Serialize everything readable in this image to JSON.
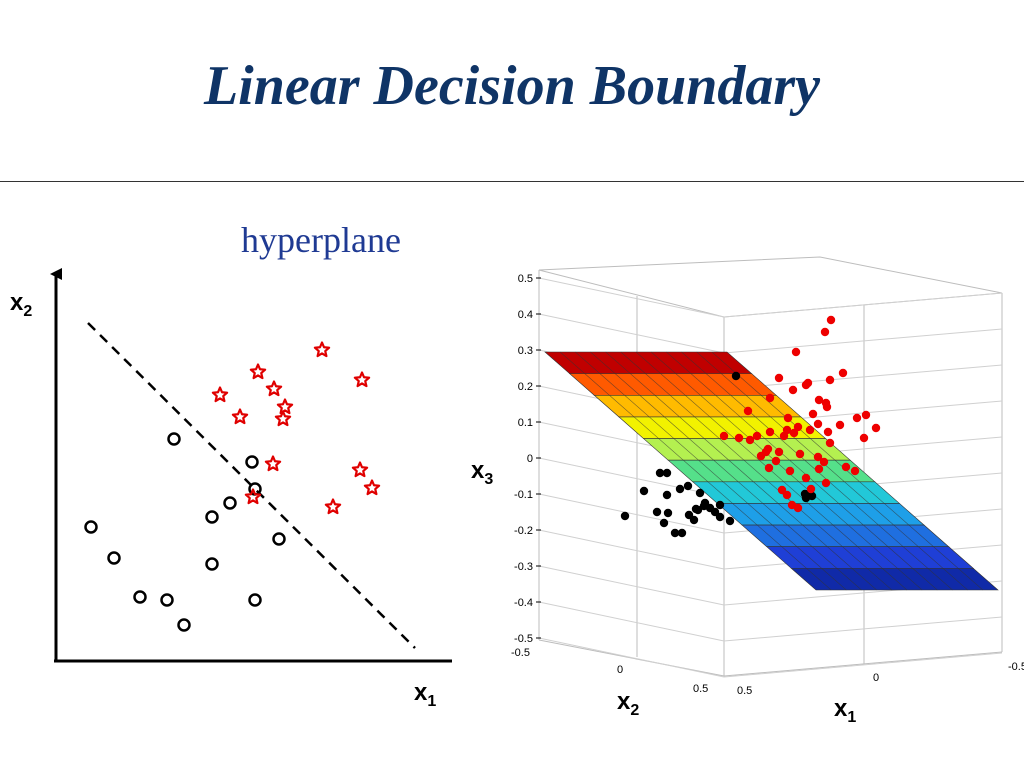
{
  "slide": {
    "title": "Linear Decision Boundary",
    "hyperplane_label": "hyperplane"
  },
  "plot2d": {
    "x_axis_label": "x",
    "x_axis_sub": "1",
    "y_axis_label": "x",
    "y_axis_sub": "2",
    "circles": [
      [
        174,
        439
      ],
      [
        252,
        462
      ],
      [
        255,
        489
      ],
      [
        230,
        503
      ],
      [
        212,
        517
      ],
      [
        279,
        539
      ],
      [
        91,
        527
      ],
      [
        114,
        558
      ],
      [
        212,
        564
      ],
      [
        140,
        597
      ],
      [
        167,
        600
      ],
      [
        184,
        625
      ],
      [
        255,
        600
      ]
    ],
    "stars": [
      [
        322,
        350
      ],
      [
        258,
        372
      ],
      [
        362,
        380
      ],
      [
        220,
        395
      ],
      [
        274,
        389
      ],
      [
        285,
        407
      ],
      [
        240,
        417
      ],
      [
        283,
        419
      ],
      [
        273,
        464
      ],
      [
        360,
        470
      ],
      [
        253,
        497
      ],
      [
        372,
        488
      ],
      [
        333,
        507
      ]
    ],
    "boundary": [
      [
        88,
        323
      ],
      [
        415,
        648
      ]
    ],
    "colors": {
      "circle": "#000000",
      "star": "#e00000"
    }
  },
  "plot3d": {
    "z_axis_label": "x",
    "z_axis_sub": "3",
    "x1_axis_label": "x",
    "x1_axis_sub": "1",
    "x2_axis_label": "x",
    "x2_axis_sub": "2",
    "z_ticks": [
      "0.5",
      "0.4",
      "0.3",
      "0.2",
      "0.1",
      "0",
      "-0.1",
      "-0.2",
      "-0.3",
      "-0.4",
      "-0.5"
    ],
    "x2_ticks": [
      "-0.5",
      "0",
      "0.5"
    ],
    "x1_ticks": [
      "0.5",
      "0",
      "-0.5"
    ],
    "plane_colors": [
      "#c00000",
      "#ff5a00",
      "#ffbb00",
      "#f2f200",
      "#b4f050",
      "#55e08a",
      "#22c8d8",
      "#1e9fe8",
      "#1f6fe0",
      "#1f3fd6",
      "#102aa8"
    ],
    "black_points": [
      [
        625,
        516
      ],
      [
        660,
        473
      ],
      [
        667,
        473
      ],
      [
        644,
        491
      ],
      [
        667,
        495
      ],
      [
        680,
        489
      ],
      [
        688,
        486
      ],
      [
        700,
        493
      ],
      [
        657,
        512
      ],
      [
        664,
        523
      ],
      [
        668,
        513
      ],
      [
        675,
        533
      ],
      [
        682,
        533
      ],
      [
        689,
        515
      ],
      [
        694,
        520
      ],
      [
        698,
        510
      ],
      [
        705,
        503
      ],
      [
        710,
        508
      ],
      [
        715,
        512
      ],
      [
        720,
        505
      ],
      [
        730,
        521
      ],
      [
        720,
        517
      ],
      [
        704,
        506
      ],
      [
        696,
        509
      ],
      [
        736,
        376
      ],
      [
        805,
        494
      ],
      [
        812,
        496
      ],
      [
        806,
        498
      ]
    ],
    "red_points": [
      [
        831,
        320
      ],
      [
        825,
        332
      ],
      [
        796,
        352
      ],
      [
        843,
        373
      ],
      [
        779,
        378
      ],
      [
        808,
        383
      ],
      [
        830,
        380
      ],
      [
        793,
        390
      ],
      [
        806,
        385
      ],
      [
        770,
        398
      ],
      [
        819,
        400
      ],
      [
        826,
        403
      ],
      [
        827,
        407
      ],
      [
        813,
        414
      ],
      [
        788,
        418
      ],
      [
        857,
        418
      ],
      [
        866,
        415
      ],
      [
        840,
        425
      ],
      [
        876,
        428
      ],
      [
        818,
        424
      ],
      [
        798,
        427
      ],
      [
        787,
        430
      ],
      [
        794,
        433
      ],
      [
        810,
        430
      ],
      [
        828,
        432
      ],
      [
        770,
        432
      ],
      [
        784,
        436
      ],
      [
        750,
        440
      ],
      [
        766,
        452
      ],
      [
        779,
        452
      ],
      [
        800,
        454
      ],
      [
        818,
        457
      ],
      [
        739,
        438
      ],
      [
        724,
        436
      ],
      [
        761,
        456
      ],
      [
        769,
        468
      ],
      [
        790,
        471
      ],
      [
        846,
        467
      ],
      [
        864,
        438
      ],
      [
        830,
        443
      ],
      [
        776,
        461
      ],
      [
        855,
        471
      ],
      [
        782,
        490
      ],
      [
        787,
        495
      ],
      [
        819,
        469
      ],
      [
        824,
        462
      ],
      [
        806,
        478
      ],
      [
        826,
        483
      ],
      [
        798,
        508
      ],
      [
        792,
        505
      ],
      [
        811,
        489
      ],
      [
        768,
        449
      ],
      [
        757,
        436
      ],
      [
        748,
        411
      ]
    ]
  }
}
